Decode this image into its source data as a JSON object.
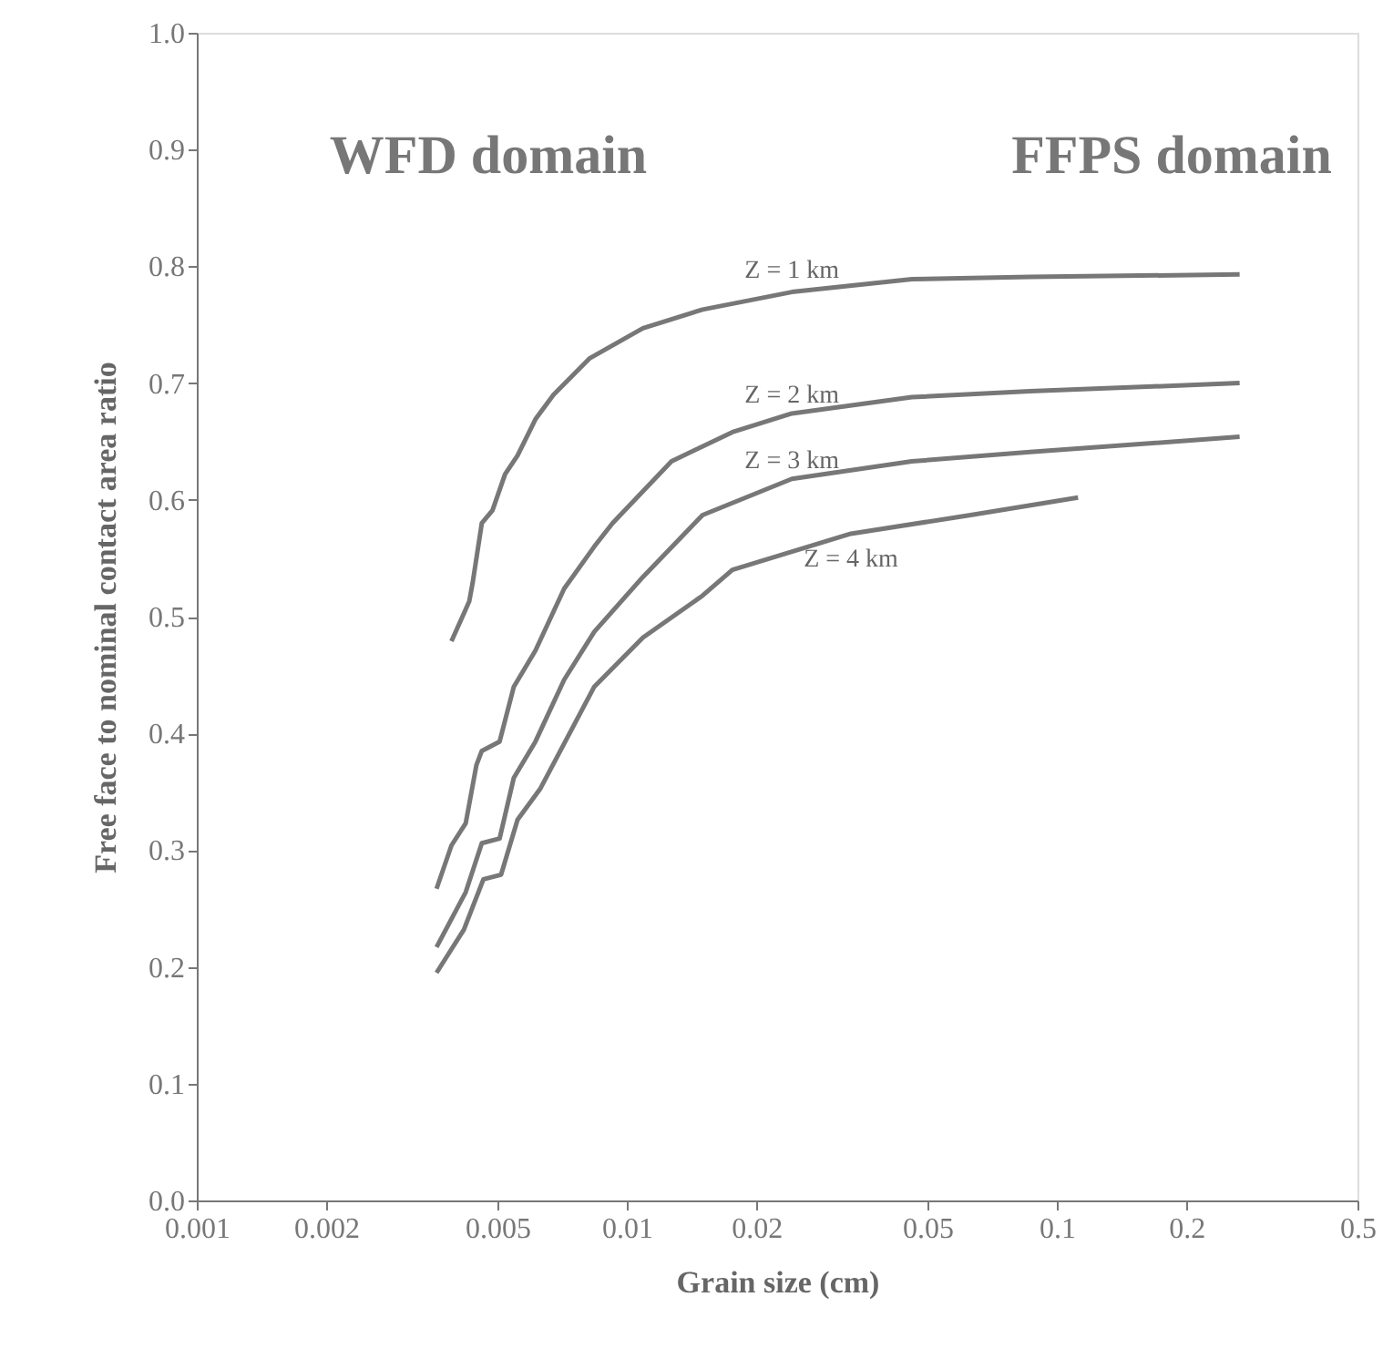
{
  "chart_data": {
    "type": "line",
    "xlabel": "Grain size (cm)",
    "ylabel": "Free face to nominal contact area ratio",
    "log": "x",
    "xlim": [
      0.001,
      0.5
    ],
    "ylim": [
      0,
      1
    ],
    "xticks": [
      0.001,
      0.002,
      0.005,
      0.01,
      0.02,
      0.05,
      0.1,
      0.2,
      0.5
    ],
    "yticks": [
      {
        "value": 0,
        "label": "0.0"
      },
      {
        "value": 0.1,
        "label": "0.1"
      },
      {
        "value": 0.2,
        "label": "0.2"
      },
      {
        "value": 0.3,
        "label": "0.3"
      },
      {
        "value": 0.4,
        "label": "0.4"
      },
      {
        "value": 0.5,
        "label": "0.5"
      },
      {
        "value": 0.6,
        "label": "0.6"
      },
      {
        "value": 0.7,
        "label": "0.7"
      },
      {
        "value": 0.8,
        "label": "0.8"
      },
      {
        "value": 0.9,
        "label": "0.9"
      },
      {
        "value": 1,
        "label": "1.0"
      }
    ],
    "grid": false,
    "marker": "none",
    "line_style": "solid",
    "series": [
      {
        "name": "Z = 1 km",
        "color": "#777777",
        "x": [
          0.00391,
          0.0043,
          0.00438,
          0.0046,
          0.00487,
          0.00521,
          0.00557,
          0.00613,
          0.00675,
          0.00818,
          0.0109,
          0.015,
          0.0242,
          0.046,
          0.0866,
          0.266
        ],
        "values": [
          0.479,
          0.513,
          0.529,
          0.58,
          0.591,
          0.622,
          0.638,
          0.669,
          0.69,
          0.721,
          0.747,
          0.763,
          0.778,
          0.789,
          0.791,
          0.793
        ]
      },
      {
        "name": "Z = 2 km",
        "color": "#777777",
        "x": [
          0.00361,
          0.00391,
          0.00422,
          0.00447,
          0.0046,
          0.00506,
          0.00546,
          0.00613,
          0.00715,
          0.0084,
          0.00926,
          0.0127,
          0.0176,
          0.0242,
          0.046,
          0.0866,
          0.266
        ],
        "values": [
          0.267,
          0.304,
          0.323,
          0.373,
          0.385,
          0.393,
          0.44,
          0.471,
          0.524,
          0.56,
          0.58,
          0.633,
          0.658,
          0.674,
          0.688,
          0.693,
          0.7
        ]
      },
      {
        "name": "Z = 3 km",
        "color": "#777777",
        "x": [
          0.00361,
          0.00422,
          0.0046,
          0.00506,
          0.00546,
          0.00613,
          0.00715,
          0.0084,
          0.0109,
          0.015,
          0.0242,
          0.046,
          0.0866,
          0.266
        ],
        "values": [
          0.217,
          0.264,
          0.306,
          0.31,
          0.362,
          0.393,
          0.446,
          0.487,
          0.534,
          0.587,
          0.618,
          0.633,
          0.641,
          0.654
        ]
      },
      {
        "name": "Z = 4 km",
        "color": "#777777",
        "x": [
          0.00361,
          0.00418,
          0.00464,
          0.0051,
          0.00557,
          0.0063,
          0.0084,
          0.0109,
          0.015,
          0.0176,
          0.0332,
          0.063,
          0.112
        ],
        "values": [
          0.195,
          0.232,
          0.275,
          0.279,
          0.326,
          0.353,
          0.44,
          0.482,
          0.518,
          0.54,
          0.571,
          0.587,
          0.602
        ]
      }
    ],
    "annotations": [
      "WFD domain",
      "FFPS domain"
    ]
  }
}
